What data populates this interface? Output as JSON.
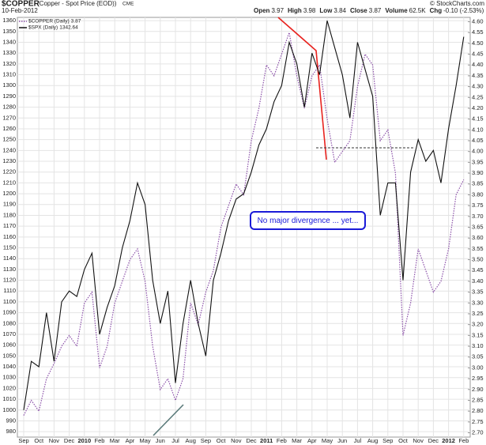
{
  "chart_data": {
    "type": "line",
    "header": {
      "symbol": "$COPPER",
      "name": "(Copper - Spot Price (EOD))",
      "exchange": "CME",
      "date": "10-Feb-2012",
      "quote": [
        {
          "label": "Open",
          "value": "3.97"
        },
        {
          "label": "High",
          "value": "3.98"
        },
        {
          "label": "Low",
          "value": "3.84"
        },
        {
          "label": "Close",
          "value": "3.87"
        },
        {
          "label": "Volume",
          "value": "62.5K"
        },
        {
          "label": "Chg",
          "value": "-0.10 (-2.53%)"
        }
      ],
      "copyright": "© StockCharts.com"
    },
    "annotation": "No major divergence ... yet...",
    "categories": [
      "Sep",
      null,
      "Oct",
      null,
      "Nov",
      null,
      "Dec",
      null,
      "2010",
      null,
      "Feb",
      null,
      "Mar",
      null,
      "Apr",
      null,
      "May",
      null,
      "Jun",
      null,
      "Jul",
      null,
      "Aug",
      null,
      "Sep",
      null,
      "Oct",
      null,
      "Nov",
      null,
      "Dec",
      null,
      "2011",
      null,
      "Feb",
      null,
      "Mar",
      null,
      "Apr",
      null,
      "May",
      null,
      "Jun",
      null,
      "Jul",
      null,
      "Aug",
      null,
      "Sep",
      null,
      "Oct",
      null,
      "Nov",
      null,
      "Dec",
      null,
      "2012",
      null,
      "Feb"
    ],
    "series": [
      {
        "name": "$COPPER (Daily)",
        "last": 3.87,
        "color": "#8a4fa8",
        "axis": "y2",
        "values": [
          2.78,
          2.85,
          2.8,
          2.95,
          3.02,
          3.1,
          3.15,
          3.1,
          3.3,
          3.35,
          3.0,
          3.1,
          3.3,
          3.4,
          3.5,
          3.55,
          3.4,
          3.1,
          2.9,
          2.95,
          2.85,
          2.95,
          3.3,
          3.2,
          3.35,
          3.45,
          3.65,
          3.75,
          3.85,
          3.8,
          4.05,
          4.2,
          4.4,
          4.35,
          4.45,
          4.55,
          4.35,
          4.2,
          4.35,
          4.4,
          4.15,
          3.95,
          4.0,
          4.05,
          4.3,
          4.45,
          4.4,
          4.05,
          4.1,
          3.9,
          3.15,
          3.3,
          3.55,
          3.45,
          3.35,
          3.4,
          3.55,
          3.8,
          3.87
        ]
      },
      {
        "name": "$SPX (Daily)",
        "last": 1342.64,
        "color": "#111111",
        "values": [
          1000,
          1045,
          1040,
          1090,
          1045,
          1100,
          1110,
          1105,
          1130,
          1145,
          1070,
          1095,
          1115,
          1150,
          1175,
          1210,
          1190,
          1120,
          1080,
          1110,
          1025,
          1080,
          1120,
          1080,
          1050,
          1120,
          1145,
          1175,
          1195,
          1200,
          1220,
          1245,
          1260,
          1285,
          1300,
          1340,
          1320,
          1280,
          1330,
          1310,
          1360,
          1335,
          1310,
          1270,
          1340,
          1315,
          1290,
          1180,
          1210,
          1210,
          1120,
          1220,
          1250,
          1230,
          1240,
          1210,
          1260,
          1300,
          1345
        ]
      }
    ],
    "ylim": [
      975,
      1363
    ],
    "yticks": [
      980,
      990,
      1000,
      1010,
      1020,
      1030,
      1040,
      1050,
      1060,
      1070,
      1080,
      1090,
      1100,
      1110,
      1120,
      1130,
      1140,
      1150,
      1160,
      1170,
      1180,
      1190,
      1200,
      1210,
      1220,
      1230,
      1240,
      1250,
      1260,
      1270,
      1280,
      1290,
      1300,
      1310,
      1320,
      1330,
      1340,
      1350,
      1360
    ],
    "y2lim": [
      2.68,
      4.62
    ],
    "y2ticks": [
      {
        "value": 2.7,
        "label": "2.70"
      },
      2.75,
      {
        "value": 2.8,
        "label": "2.80"
      },
      2.85,
      {
        "value": 2.9,
        "label": "2.90"
      },
      2.95,
      {
        "value": 3,
        "label": "3.00"
      },
      3.05,
      {
        "value": 3.1,
        "label": "3.10"
      },
      3.15,
      {
        "value": 3.2,
        "label": "3.20"
      },
      3.25,
      {
        "value": 3.3,
        "label": "3.30"
      },
      3.35,
      {
        "value": 3.4,
        "label": "3.40"
      },
      3.45,
      {
        "value": 3.5,
        "label": "3.50"
      },
      3.55,
      {
        "value": 3.6,
        "label": "3.60"
      },
      3.65,
      {
        "value": 3.7,
        "label": "3.70"
      },
      3.75,
      {
        "value": 3.8,
        "label": "3.80"
      },
      3.85,
      {
        "value": 3.9,
        "label": "3.90"
      },
      3.95,
      {
        "value": 4,
        "label": "4.00"
      },
      4.05,
      {
        "value": 4.1,
        "label": "4.10"
      },
      4.15,
      {
        "value": 4.2,
        "label": "4.20"
      },
      4.25,
      {
        "value": 4.3,
        "label": "4.30"
      },
      4.35,
      {
        "value": 4.4,
        "label": "4.40"
      },
      4.45,
      {
        "value": 4.5,
        "label": "4.50"
      },
      4.55,
      {
        "value": 4.6,
        "label": "4.60"
      }
    ],
    "grid": true
  }
}
